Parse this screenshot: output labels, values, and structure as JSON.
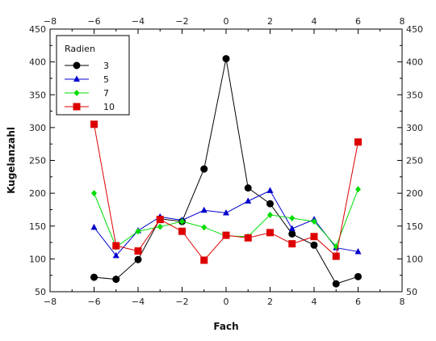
{
  "chart_data": {
    "type": "line",
    "xlabel": "Fach",
    "ylabel": "Kugelanzahl",
    "xlim": [
      -8,
      8
    ],
    "ylim": [
      50,
      450
    ],
    "x_ticks": [
      -8,
      -6,
      -4,
      -2,
      0,
      2,
      4,
      6,
      8
    ],
    "y_ticks": [
      50,
      100,
      150,
      200,
      250,
      300,
      350,
      400,
      450
    ],
    "grid": false,
    "legend_title": "Radien",
    "legend_position": "top-left",
    "x": [
      -6,
      -5,
      -4,
      -3,
      -2,
      -1,
      0,
      1,
      2,
      3,
      4,
      5,
      6
    ],
    "series": [
      {
        "name": "3",
        "color": "#000000",
        "marker": "circle",
        "values": [
          72,
          69,
          99,
          161,
          157,
          237,
          405,
          208,
          184,
          138,
          121,
          62,
          73
        ]
      },
      {
        "name": "5",
        "color": "#0000cc",
        "marker": "triangle",
        "values": [
          148,
          105,
          143,
          164,
          159,
          174,
          170,
          188,
          204,
          146,
          160,
          117,
          111
        ]
      },
      {
        "name": "7",
        "color": "#00dd00",
        "marker": "diamond",
        "values": [
          200,
          118,
          142,
          149,
          157,
          148,
          135,
          134,
          167,
          162,
          157,
          119,
          206
        ]
      },
      {
        "name": "10",
        "color": "#dd0000",
        "marker": "square",
        "values": [
          305,
          120,
          112,
          160,
          142,
          98,
          136,
          132,
          140,
          123,
          134,
          104,
          278
        ]
      }
    ]
  }
}
